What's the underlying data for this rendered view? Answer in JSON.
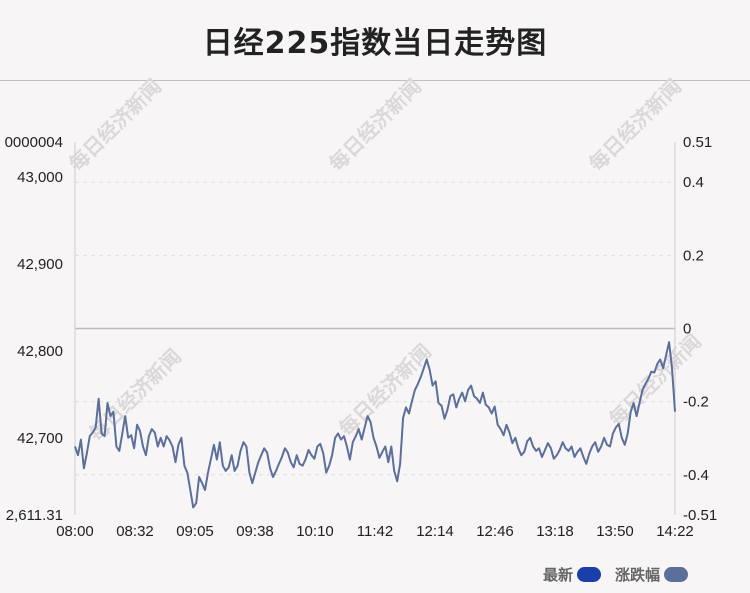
{
  "title": "日经225指数当日走势图",
  "watermark": "每日经济新闻",
  "legend": [
    {
      "label": "最新",
      "color": "#1a3fa8"
    },
    {
      "label": "涨跌幅",
      "color": "#5b6f9a"
    }
  ],
  "chart_data": {
    "type": "line",
    "title": "日经225指数当日走势图",
    "x_ticks": [
      "08:00",
      "08:32",
      "09:05",
      "09:38",
      "10:10",
      "11:42",
      "12:14",
      "12:46",
      "13:18",
      "13:50",
      "14:22"
    ],
    "y_left_ticks": [
      "0000004",
      "43,000",
      "42,900",
      "42,800",
      "42,700",
      "2,611.31"
    ],
    "y_right_ticks": [
      "0.51",
      "0.4",
      "0.2",
      "0",
      "-0.2",
      "-0.4",
      "-0.51"
    ],
    "y_left_range": [
      42611.31,
      43040
    ],
    "y_right_range": [
      -0.51,
      0.51
    ],
    "reference_line": 0,
    "grid": true,
    "legend_position": "bottom-right",
    "series": [
      {
        "name": "最新",
        "color": "#5b6f9a",
        "values": [
          42690,
          42680,
          42698,
          42665,
          42682,
          42702,
          42706,
          42712,
          42745,
          42705,
          42702,
          42740,
          42725,
          42730,
          42690,
          42685,
          42705,
          42725,
          42700,
          42703,
          42688,
          42715,
          42708,
          42690,
          42680,
          42702,
          42710,
          42706,
          42690,
          42700,
          42690,
          42702,
          42697,
          42690,
          42672,
          42692,
          42700,
          42668,
          42660,
          42640,
          42620,
          42625,
          42655,
          42648,
          42640,
          42660,
          42676,
          42692,
          42675,
          42695,
          42668,
          42662,
          42666,
          42680,
          42662,
          42668,
          42685,
          42695,
          42690,
          42660,
          42648,
          42660,
          42672,
          42680,
          42688,
          42683,
          42665,
          42655,
          42662,
          42670,
          42678,
          42688,
          42683,
          42672,
          42666,
          42680,
          42670,
          42668,
          42675,
          42686,
          42680,
          42676,
          42690,
          42693,
          42682,
          42660,
          42668,
          42680,
          42700,
          42705,
          42698,
          42702,
          42690,
          42675,
          42695,
          42702,
          42710,
          42698,
          42712,
          42725,
          42718,
          42700,
          42690,
          42677,
          42684,
          42690,
          42672,
          42690,
          42662,
          42650,
          42670,
          42723,
          42735,
          42728,
          42742,
          42755,
          42762,
          42770,
          42780,
          42790,
          42778,
          42760,
          42765,
          42740,
          42737,
          42722,
          42732,
          42748,
          42750,
          42735,
          42745,
          42752,
          42742,
          42755,
          42760,
          42748,
          42745,
          42740,
          42752,
          42738,
          42735,
          42728,
          42736,
          42715,
          42710,
          42703,
          42715,
          42706,
          42694,
          42700,
          42688,
          42680,
          42684,
          42696,
          42700,
          42690,
          42685,
          42688,
          42678,
          42686,
          42694,
          42688,
          42676,
          42680,
          42686,
          42695,
          42688,
          42685,
          42690,
          42678,
          42684,
          42688,
          42678,
          42670,
          42682,
          42690,
          42695,
          42684,
          42690,
          42700,
          42692,
          42690,
          42705,
          42712,
          42716,
          42700,
          42692,
          42705,
          42730,
          42740,
          42725,
          42740,
          42755,
          42762,
          42768,
          42776,
          42775,
          42785,
          42790,
          42780,
          42795,
          42810,
          42780,
          42730
        ]
      }
    ]
  }
}
